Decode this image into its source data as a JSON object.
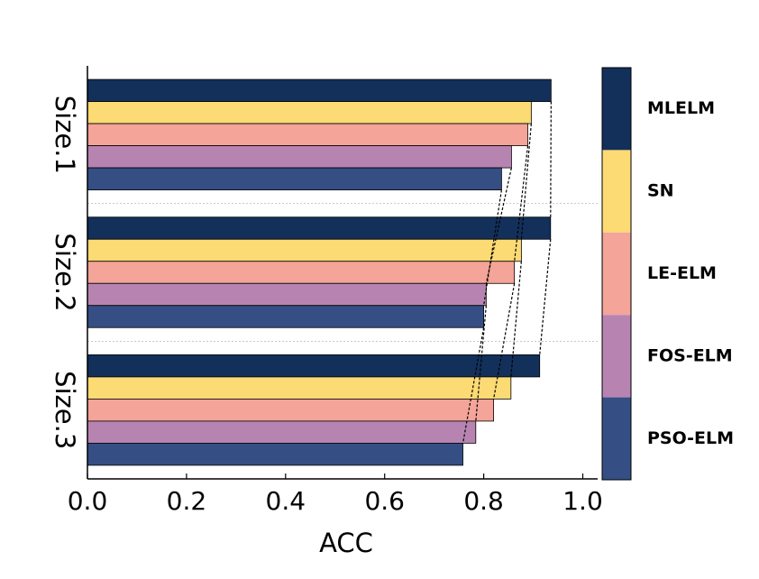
{
  "chart_data": {
    "type": "bar",
    "orientation": "horizontal",
    "x_label": "ACC",
    "categories": [
      "Size.1",
      "Size.2",
      "Size.3"
    ],
    "series": [
      {
        "name": "MLELM",
        "color": "#12305a",
        "values": [
          0.936,
          0.935,
          0.913
        ]
      },
      {
        "name": "SN",
        "color": "#fcda74",
        "values": [
          0.896,
          0.876,
          0.855
        ]
      },
      {
        "name": "LE-ELM",
        "color": "#f4a498",
        "values": [
          0.889,
          0.862,
          0.82
        ]
      },
      {
        "name": "FOS-ELM",
        "color": "#b784b2",
        "values": [
          0.856,
          0.805,
          0.784
        ]
      },
      {
        "name": "PSO-ELM",
        "color": "#354f84",
        "values": [
          0.836,
          0.8,
          0.758
        ]
      }
    ],
    "xlim": [
      0,
      1.03
    ],
    "xticks": [
      {
        "value": 0,
        "label": "0.0"
      },
      0.2,
      0.4,
      0.6,
      0.8,
      {
        "value": 1,
        "label": "1.0"
      }
    ]
  }
}
